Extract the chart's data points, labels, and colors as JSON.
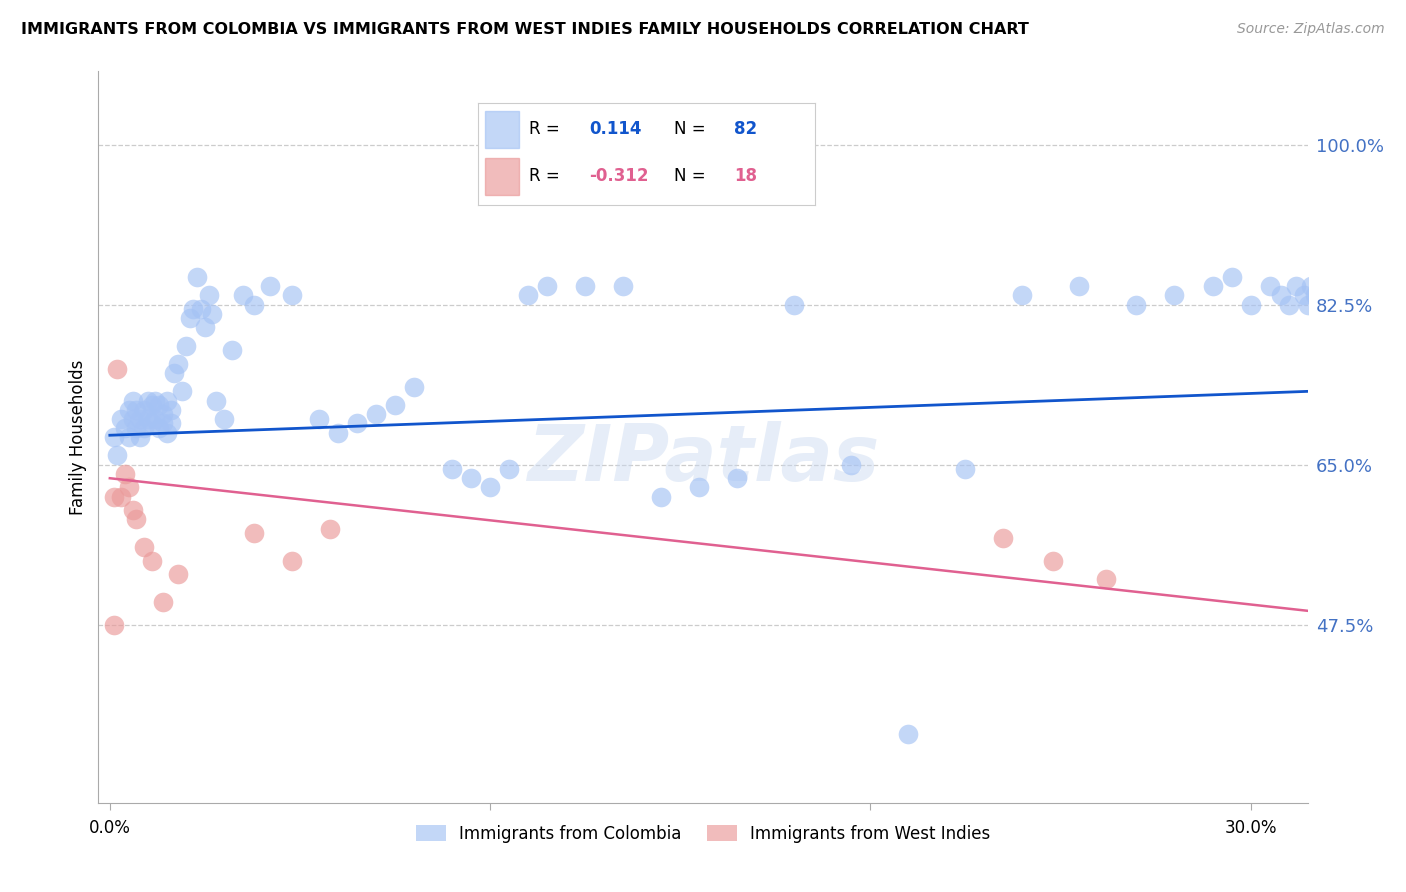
{
  "title": "IMMIGRANTS FROM COLOMBIA VS IMMIGRANTS FROM WEST INDIES FAMILY HOUSEHOLDS CORRELATION CHART",
  "source": "Source: ZipAtlas.com",
  "ylabel": "Family Households",
  "ytick_labels": [
    "100.0%",
    "82.5%",
    "65.0%",
    "47.5%"
  ],
  "ytick_values": [
    1.0,
    0.825,
    0.65,
    0.475
  ],
  "ymin": 0.28,
  "ymax": 1.08,
  "xmin": -0.003,
  "xmax": 0.315,
  "blue_color": "#a4c2f4",
  "pink_color": "#ea9999",
  "blue_line_color": "#1155cc",
  "pink_line_color": "#e06090",
  "right_label_color": "#4472c4",
  "legend_blue_r": "0.114",
  "legend_blue_n": "82",
  "legend_pink_r": "-0.312",
  "legend_pink_n": "18",
  "colombia_scatter_x": [
    0.001,
    0.002,
    0.003,
    0.004,
    0.005,
    0.005,
    0.006,
    0.006,
    0.007,
    0.007,
    0.008,
    0.008,
    0.009,
    0.009,
    0.01,
    0.01,
    0.011,
    0.011,
    0.012,
    0.012,
    0.013,
    0.013,
    0.014,
    0.014,
    0.015,
    0.015,
    0.016,
    0.016,
    0.017,
    0.018,
    0.019,
    0.02,
    0.021,
    0.022,
    0.023,
    0.024,
    0.025,
    0.026,
    0.027,
    0.028,
    0.03,
    0.032,
    0.035,
    0.038,
    0.042,
    0.048,
    0.055,
    0.06,
    0.065,
    0.07,
    0.075,
    0.08,
    0.09,
    0.095,
    0.1,
    0.105,
    0.11,
    0.115,
    0.125,
    0.135,
    0.145,
    0.155,
    0.165,
    0.18,
    0.195,
    0.21,
    0.225,
    0.24,
    0.255,
    0.27,
    0.28,
    0.29,
    0.295,
    0.3,
    0.305,
    0.308,
    0.31,
    0.312,
    0.314,
    0.315,
    0.316,
    0.317
  ],
  "colombia_scatter_y": [
    0.68,
    0.66,
    0.7,
    0.69,
    0.71,
    0.68,
    0.7,
    0.72,
    0.69,
    0.71,
    0.7,
    0.68,
    0.71,
    0.69,
    0.72,
    0.7,
    0.715,
    0.695,
    0.72,
    0.7,
    0.715,
    0.69,
    0.705,
    0.695,
    0.72,
    0.685,
    0.71,
    0.695,
    0.75,
    0.76,
    0.73,
    0.78,
    0.81,
    0.82,
    0.855,
    0.82,
    0.8,
    0.835,
    0.815,
    0.72,
    0.7,
    0.775,
    0.835,
    0.825,
    0.845,
    0.835,
    0.7,
    0.685,
    0.695,
    0.705,
    0.715,
    0.735,
    0.645,
    0.635,
    0.625,
    0.645,
    0.835,
    0.845,
    0.845,
    0.845,
    0.615,
    0.625,
    0.635,
    0.825,
    0.65,
    0.355,
    0.645,
    0.835,
    0.845,
    0.825,
    0.835,
    0.845,
    0.855,
    0.825,
    0.845,
    0.835,
    0.825,
    0.845,
    0.835,
    0.825,
    0.845,
    0.835
  ],
  "westindies_scatter_x": [
    0.001,
    0.001,
    0.002,
    0.003,
    0.004,
    0.005,
    0.006,
    0.007,
    0.009,
    0.011,
    0.014,
    0.018,
    0.038,
    0.048,
    0.058,
    0.235,
    0.248,
    0.262
  ],
  "westindies_scatter_y": [
    0.475,
    0.615,
    0.755,
    0.615,
    0.64,
    0.625,
    0.6,
    0.59,
    0.56,
    0.545,
    0.5,
    0.53,
    0.575,
    0.545,
    0.58,
    0.57,
    0.545,
    0.525
  ],
  "blue_trend_x": [
    0.0,
    0.315
  ],
  "blue_trend_y": [
    0.682,
    0.73
  ],
  "pink_trend_x": [
    0.0,
    0.315
  ],
  "pink_trend_y": [
    0.635,
    0.49
  ],
  "watermark": "ZIPatlas",
  "bottom_legend_labels": [
    "Immigrants from Colombia",
    "Immigrants from West Indies"
  ]
}
